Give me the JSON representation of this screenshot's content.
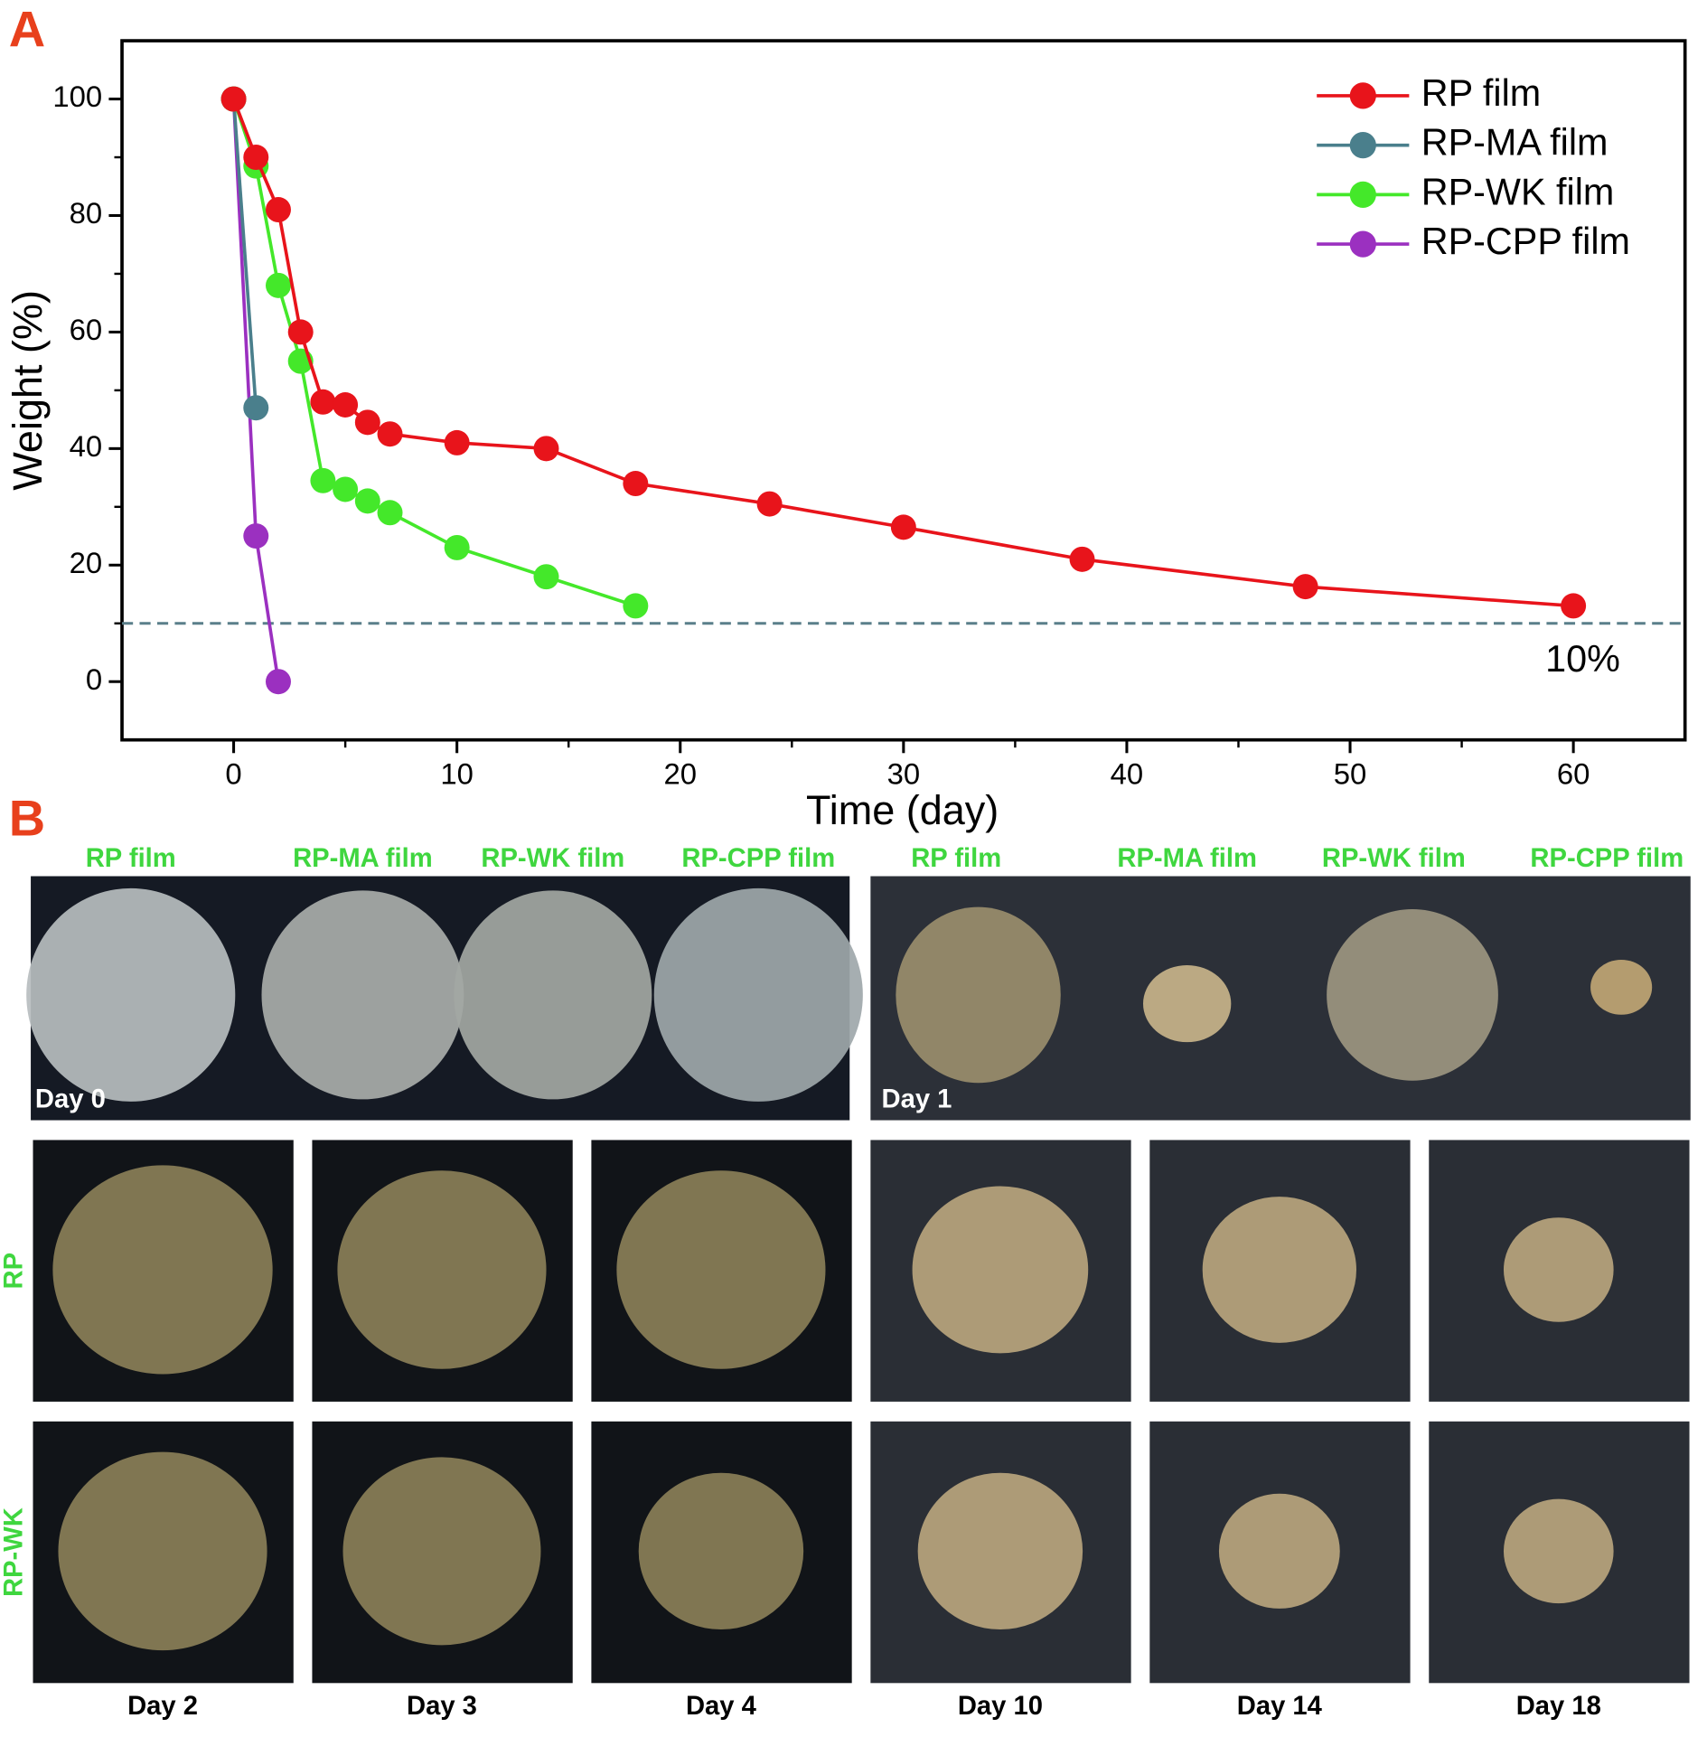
{
  "panel_labels": [
    "A",
    "B"
  ],
  "chart_data": {
    "type": "line",
    "xlabel": "Time (day)",
    "ylabel": "Weight (%)",
    "xlim": [
      -5,
      65
    ],
    "ylim": [
      -10,
      110
    ],
    "xticks": [
      0,
      10,
      20,
      30,
      40,
      50,
      60
    ],
    "yticks": [
      0,
      20,
      40,
      60,
      80,
      100
    ],
    "legend": "upper right",
    "reference_line": {
      "value": 10,
      "label": "10%",
      "color": "#5a7f8a"
    },
    "series": [
      {
        "name": "RP film",
        "color": "#e8141b",
        "x": [
          0,
          1,
          2,
          3,
          4,
          5,
          6,
          7,
          10,
          14,
          18,
          24,
          30,
          38,
          48,
          60
        ],
        "values": [
          100,
          90,
          81,
          60,
          48,
          47.5,
          44.5,
          42.5,
          41,
          40,
          34,
          30.5,
          26.5,
          21,
          16.3,
          13
        ]
      },
      {
        "name": "RP-MA film",
        "color": "#4a7f8c",
        "x": [
          0,
          1
        ],
        "values": [
          100,
          47
        ]
      },
      {
        "name": "RP-WK film",
        "color": "#44e82a",
        "x": [
          0,
          1,
          2,
          3,
          4,
          5,
          6,
          7,
          10,
          14,
          18
        ],
        "values": [
          100,
          88.5,
          68,
          55,
          34.5,
          33,
          31,
          29,
          23,
          18,
          13
        ]
      },
      {
        "name": "RP-CPP film",
        "color": "#9b30c0",
        "x": [
          0,
          1,
          2
        ],
        "values": [
          100,
          25,
          0
        ]
      }
    ]
  },
  "photos": {
    "top_labels": [
      "RP film",
      "RP-MA film",
      "RP-WK film",
      "RP-CPP film",
      "RP film",
      "RP-MA film",
      "RP-WK film",
      "RP-CPP film"
    ],
    "top_days": [
      "Day 0",
      "Day 1"
    ],
    "row_labels": [
      "RP",
      "RP-WK"
    ],
    "bottom_days": [
      "Day 2",
      "Day 3",
      "Day 4",
      "Day 10",
      "Day 14",
      "Day 18"
    ]
  }
}
